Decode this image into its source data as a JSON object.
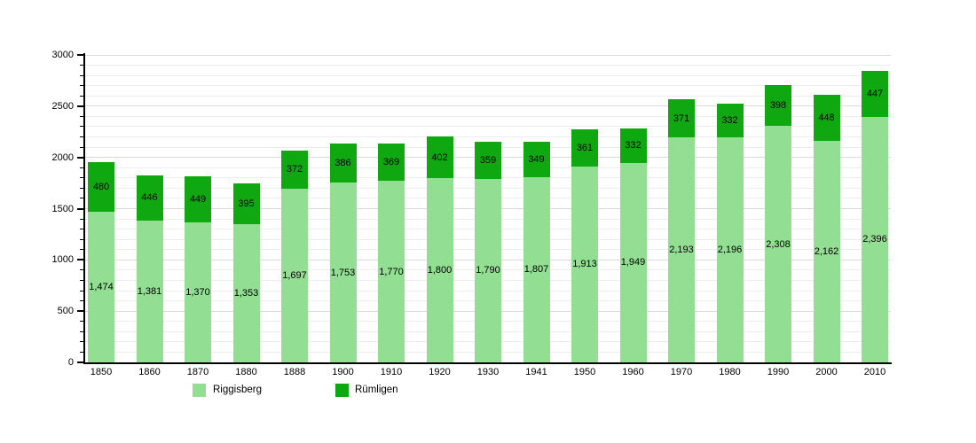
{
  "chart_data": {
    "type": "bar",
    "stacked": true,
    "title": "",
    "xlabel": "",
    "ylabel": "",
    "categories": [
      "1850",
      "1860",
      "1870",
      "1880",
      "1888",
      "1900",
      "1910",
      "1920",
      "1930",
      "1941",
      "1950",
      "1960",
      "1970",
      "1980",
      "1990",
      "2000",
      "2010"
    ],
    "series": [
      {
        "name": "Riggisberg",
        "color": "#92DE92",
        "values": [
          1474,
          1381,
          1370,
          1353,
          1697,
          1753,
          1770,
          1800,
          1790,
          1807,
          1913,
          1949,
          2193,
          2196,
          2308,
          2162,
          2396
        ],
        "value_labels": [
          "1,474",
          "1,381",
          "1,370",
          "1,353",
          "1,697",
          "1,753",
          "1,770",
          "1,800",
          "1,790",
          "1,807",
          "1,913",
          "1,949",
          "2,193",
          "2,196",
          "2,308",
          "2,162",
          "2,396"
        ]
      },
      {
        "name": "Rümligen",
        "color": "#10A810",
        "values": [
          480,
          446,
          449,
          395,
          372,
          386,
          369,
          402,
          359,
          349,
          361,
          332,
          371,
          332,
          398,
          448,
          447
        ],
        "value_labels": [
          "480",
          "446",
          "449",
          "395",
          "372",
          "386",
          "369",
          "402",
          "359",
          "349",
          "361",
          "332",
          "371",
          "332",
          "398",
          "448",
          "447"
        ]
      }
    ],
    "ylim": [
      0,
      3000
    ],
    "y_major_ticks": [
      "0",
      "500",
      "1000",
      "1500",
      "2000",
      "2500",
      "3000"
    ],
    "y_major_step": 500,
    "y_minor_step": 100,
    "grid": true,
    "legend_position": "bottom"
  },
  "colors": {
    "background": "#FFFFFF",
    "axis": "#000000",
    "grid_minor": "#EDEDED",
    "grid_major": "#DBDBDB",
    "label_text": "#000000"
  }
}
